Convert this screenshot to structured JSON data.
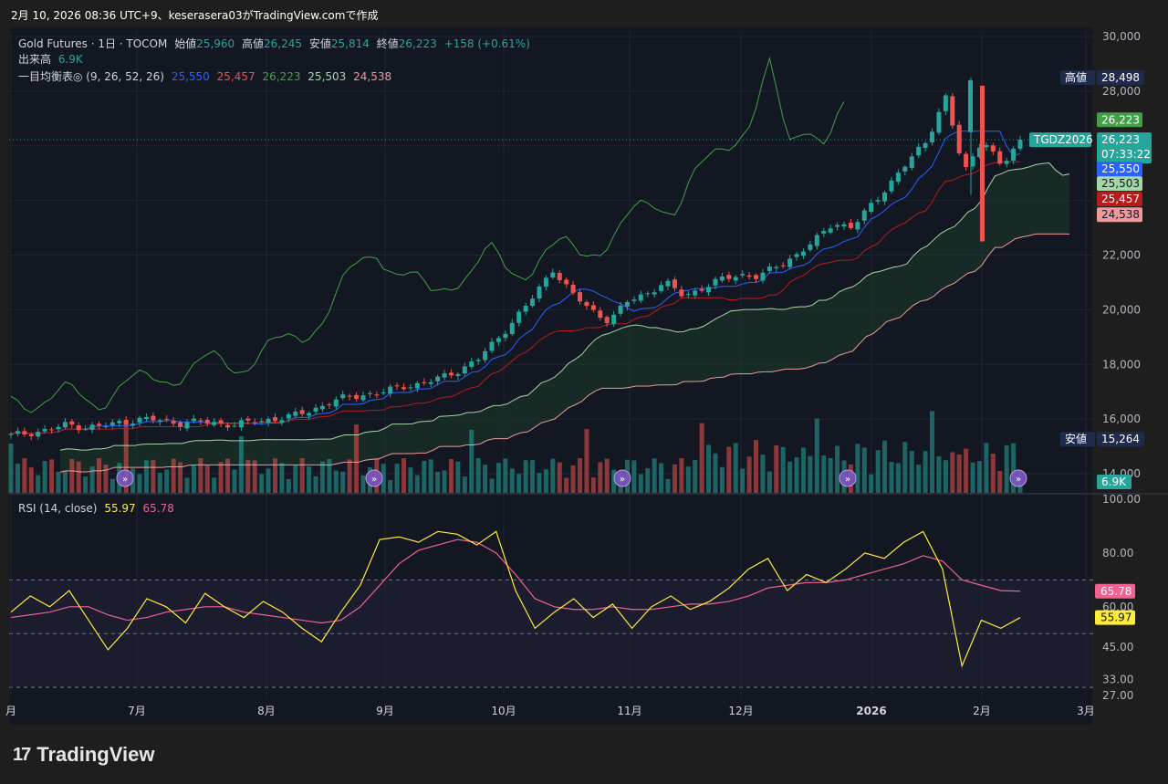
{
  "header": {
    "snapshot_text": "2月 10, 2026 08:36 UTC+9、keserasera03がTradingView.comで作成"
  },
  "legend": {
    "symbol": "Gold Futures · 1日 · TOCOM",
    "open_label": "始値",
    "open": "25,960",
    "high_label": "高値",
    "high": "26,245",
    "low_label": "安値",
    "low": "25,814",
    "close_label": "終値",
    "close": "26,223",
    "change": "+158 (+0.61%)",
    "volume_label": "出来高",
    "volume": "6.9K",
    "ichimoku_label": "一目均衡表◎ (9, 26, 52, 26)",
    "ichimoku_values": [
      "25,550",
      "25,457",
      "26,223",
      "25,503",
      "24,538"
    ],
    "rsi_label": "RSI (14, close)",
    "rsi_value": "55.97",
    "rsi_ma": "65.78"
  },
  "price_labels": {
    "high_tag": "高値",
    "high_value": "28,498",
    "low_tag": "安値",
    "low_value": "15,264",
    "symbol_tag": "TGDZ2026",
    "last": "26,223",
    "countdown": "07:33:22",
    "chikou": "26,223",
    "tenkan": "25,550",
    "span_a": "25,503",
    "kijun": "25,457",
    "span_b": "24,538",
    "volume": "6.9K",
    "rsi": "55.97",
    "rsi_ma": "65.78"
  },
  "colors": {
    "up": "#26a69a",
    "down": "#ef5350",
    "tenkan": "#2962ff",
    "kijun": "#b71c1c",
    "chikou": "#43a047",
    "span_a": "#a5d6a7",
    "span_b": "#ef9a9a",
    "rsi": "#ffeb3b",
    "rsi_ma": "#f06292"
  },
  "branding": {
    "name": "TradingView"
  },
  "chart_data": [
    {
      "type": "candlestick",
      "title": "Gold Futures · 1日 · TOCOM",
      "x_ticks": [
        "月",
        "7月",
        "8月",
        "9月",
        "10月",
        "11月",
        "12月",
        "2026",
        "2月",
        "3月"
      ],
      "y_ticks": [
        "30,000",
        "28,000",
        "22,000",
        "20,000",
        "18,000",
        "16,000",
        "14,000"
      ],
      "ylim": [
        13500,
        30000
      ],
      "series_close_approx": [
        15400,
        15500,
        15600,
        15800,
        15700,
        15750,
        15900,
        16000,
        15950,
        15850,
        15900,
        15850,
        15800,
        15900,
        16000,
        16100,
        16300,
        16600,
        16800,
        16900,
        17000,
        17200,
        17300,
        17500,
        17800,
        18200,
        18900,
        19700,
        20500,
        21500,
        20600,
        20000,
        19600,
        20300,
        20600,
        21000,
        20500,
        20800,
        21100,
        21300,
        21200,
        21600,
        22000,
        22500,
        23200,
        23000,
        23800,
        24600,
        25400,
        26200,
        27800,
        25000,
        26300,
        25200,
        26223
      ],
      "ichimoku_latest": {
        "tenkan": 25550,
        "kijun": 25457,
        "chikou": 26223,
        "span_a": 25503,
        "span_b": 24538
      }
    },
    {
      "type": "line",
      "title": "RSI (14, close)",
      "y_ticks": [
        "100.00",
        "80.00",
        "60.00",
        "45.00",
        "33.00",
        "27.00"
      ],
      "ylim": [
        27,
        100
      ],
      "levels": [
        70,
        50,
        30
      ],
      "series": [
        {
          "name": "RSI",
          "values": [
            58,
            64,
            60,
            66,
            55,
            44,
            52,
            63,
            60,
            54,
            65,
            60,
            56,
            62,
            58,
            52,
            47,
            58,
            68,
            85,
            86,
            84,
            88,
            87,
            83,
            88,
            66,
            52,
            58,
            63,
            56,
            61,
            52,
            60,
            64,
            59,
            62,
            67,
            74,
            78,
            66,
            72,
            69,
            74,
            80,
            78,
            84,
            88,
            74,
            38,
            55,
            52,
            55.97
          ]
        },
        {
          "name": "RSI MA",
          "values": [
            56,
            57,
            58,
            60,
            60,
            57,
            55,
            56,
            58,
            59,
            60,
            60,
            58,
            57,
            56,
            55,
            54,
            55,
            60,
            68,
            76,
            81,
            83,
            85,
            84,
            80,
            72,
            63,
            60,
            59,
            59,
            60,
            59,
            59,
            60,
            61,
            61,
            62,
            64,
            67,
            68,
            69,
            69,
            70,
            72,
            74,
            76,
            79,
            77,
            70,
            68,
            66,
            65.78
          ]
        }
      ]
    }
  ]
}
